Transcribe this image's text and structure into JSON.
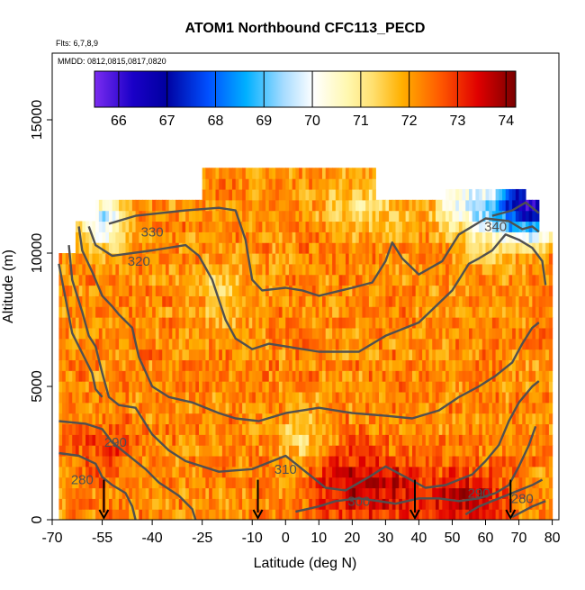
{
  "chart_data": {
    "type": "heatmap",
    "title": "ATOM1 Northbound CFC113_PECD",
    "subtitle_flights": "Flts: 6,7,8,9",
    "subtitle_dates": "MMDD: 0812,0815,0817,0820",
    "xlabel": "Latitude (deg N)",
    "ylabel": "Altitude (m)",
    "xlim": [
      -70,
      82
    ],
    "ylim": [
      0,
      17500
    ],
    "x_ticks": [
      -70,
      -55,
      -40,
      -25,
      -10,
      0,
      10,
      20,
      30,
      40,
      50,
      60,
      70,
      80
    ],
    "x_tick_labels": [
      "-70",
      "-55",
      "-40",
      "-25",
      "-10",
      "0",
      "10",
      "20",
      "30",
      "40",
      "50",
      "60",
      "70",
      "80"
    ],
    "y_ticks": [
      0,
      5000,
      10000,
      15000
    ],
    "y_tick_labels": [
      "0",
      "5000",
      "10000",
      "15000"
    ],
    "colorbar": {
      "min": 65.5,
      "max": 74.2,
      "ticks": [
        66,
        67,
        68,
        69,
        70,
        71,
        72,
        73,
        74
      ],
      "tick_labels": [
        "66",
        "67",
        "68",
        "69",
        "70",
        "71",
        "72",
        "73",
        "74"
      ]
    },
    "field_extent": {
      "x_min": -68,
      "x_max": 80,
      "y_min": 0,
      "y_max": 13000
    },
    "field_base_value": 72.2,
    "field_anomalies": [
      {
        "x": 74,
        "y": 12000,
        "value": 67.5,
        "sx": 6,
        "sy": 900
      },
      {
        "x": 64,
        "y": 11500,
        "value": 69.8,
        "sx": 9,
        "sy": 900
      },
      {
        "x": 52,
        "y": 12000,
        "value": 71.0,
        "sx": 6,
        "sy": 700
      },
      {
        "x": -55,
        "y": 11200,
        "value": 69.5,
        "sx": 4,
        "sy": 700
      },
      {
        "x": 25,
        "y": 11800,
        "value": 71.3,
        "sx": 9,
        "sy": 800
      },
      {
        "x": 5,
        "y": 3000,
        "value": 71.2,
        "sx": 5,
        "sy": 900
      },
      {
        "x": -20,
        "y": 8600,
        "value": 71.5,
        "sx": 6,
        "sy": 900
      },
      {
        "x": 30,
        "y": 1000,
        "value": 73.3,
        "sx": 12,
        "sy": 1000
      },
      {
        "x": 55,
        "y": 700,
        "value": 73.6,
        "sx": 8,
        "sy": 800
      },
      {
        "x": -55,
        "y": 2700,
        "value": 72.8,
        "sx": 8,
        "sy": 800
      },
      {
        "x": 15,
        "y": 1600,
        "value": 72.9,
        "sx": 10,
        "sy": 900
      }
    ],
    "contours": [
      {
        "label": "330",
        "label_x": -40,
        "label_y": 10800,
        "points": [
          [
            -53,
            11100
          ],
          [
            -45,
            11400
          ],
          [
            -30,
            11600
          ],
          [
            -20,
            11700
          ],
          [
            -15,
            11600
          ],
          [
            -12,
            10500
          ],
          [
            -10,
            9000
          ],
          [
            -7,
            8600
          ],
          [
            0,
            8700
          ],
          [
            5,
            8600
          ],
          [
            10,
            8400
          ],
          [
            20,
            8700
          ],
          [
            26,
            8900
          ],
          [
            30,
            9700
          ],
          [
            32,
            10400
          ],
          [
            35,
            9800
          ],
          [
            40,
            9200
          ],
          [
            47,
            9700
          ],
          [
            52,
            10700
          ],
          [
            60,
            11300
          ],
          [
            67,
            11200
          ],
          [
            71,
            10900
          ],
          [
            74,
            11000
          ],
          [
            76,
            10800
          ]
        ]
      },
      {
        "label": "340",
        "label_x": 63,
        "label_y": 11000,
        "points": [
          [
            62,
            11400
          ],
          [
            68,
            11600
          ],
          [
            72,
            11900
          ],
          [
            74,
            11700
          ],
          [
            76,
            11500
          ]
        ]
      },
      {
        "label": "320",
        "label_x": -44,
        "label_y": 9700,
        "points": [
          [
            -59,
            11000
          ],
          [
            -57,
            10300
          ],
          [
            -52,
            9900
          ],
          [
            -40,
            10100
          ],
          [
            -30,
            10300
          ],
          [
            -26,
            9900
          ],
          [
            -22,
            9000
          ],
          [
            -18,
            7500
          ],
          [
            -15,
            6800
          ],
          [
            -10,
            6400
          ],
          [
            -5,
            6600
          ],
          [
            0,
            6500
          ],
          [
            10,
            6300
          ],
          [
            22,
            6300
          ],
          [
            30,
            6900
          ],
          [
            40,
            7400
          ],
          [
            50,
            8600
          ],
          [
            55,
            9600
          ],
          [
            58,
            9800
          ],
          [
            62,
            10100
          ],
          [
            66,
            10700
          ],
          [
            70,
            10500
          ],
          [
            74,
            10200
          ],
          [
            77,
            9700
          ],
          [
            78,
            8800
          ]
        ]
      },
      {
        "label": "",
        "label_x": 0,
        "label_y": 0,
        "points": [
          [
            -62,
            11000
          ],
          [
            -61,
            10100
          ],
          [
            -58,
            9300
          ],
          [
            -55,
            8400
          ],
          [
            -52,
            8000
          ],
          [
            -50,
            7700
          ],
          [
            -46,
            7200
          ],
          [
            -44,
            6100
          ],
          [
            -40,
            5000
          ],
          [
            -35,
            4600
          ],
          [
            -28,
            4400
          ],
          [
            -20,
            4000
          ],
          [
            -15,
            3800
          ],
          [
            -8,
            3700
          ],
          [
            0,
            4000
          ],
          [
            10,
            4200
          ],
          [
            20,
            4000
          ],
          [
            30,
            3900
          ],
          [
            38,
            3800
          ],
          [
            46,
            4100
          ],
          [
            52,
            4600
          ],
          [
            58,
            5000
          ],
          [
            63,
            5400
          ],
          [
            68,
            5900
          ],
          [
            71,
            6600
          ],
          [
            74,
            7200
          ],
          [
            76,
            7400
          ]
        ]
      },
      {
        "label": "",
        "label_x": 0,
        "label_y": 0,
        "points": [
          [
            -65,
            10300
          ],
          [
            -64,
            9000
          ],
          [
            -61,
            7800
          ],
          [
            -59,
            6900
          ],
          [
            -57,
            6500
          ],
          [
            -55,
            5500
          ],
          [
            -53,
            4600
          ],
          [
            -50,
            4300
          ],
          [
            -45,
            4200
          ],
          [
            -43,
            3800
          ],
          [
            -40,
            3200
          ],
          [
            -35,
            2600
          ],
          [
            -30,
            2200
          ],
          [
            -20,
            1800
          ],
          [
            -10,
            1900
          ],
          [
            0,
            2400
          ],
          [
            3,
            2100
          ],
          [
            8,
            1600
          ],
          [
            12,
            1200
          ],
          [
            18,
            1100
          ],
          [
            25,
            1600
          ],
          [
            30,
            2000
          ],
          [
            36,
            1600
          ],
          [
            42,
            1200
          ],
          [
            48,
            1300
          ],
          [
            52,
            1500
          ],
          [
            56,
            1700
          ],
          [
            60,
            2200
          ],
          [
            64,
            2800
          ],
          [
            67,
            3700
          ],
          [
            70,
            4400
          ],
          [
            74,
            5000
          ],
          [
            76,
            5200
          ]
        ]
      },
      {
        "label": "310",
        "label_x": 0,
        "label_y": 1900,
        "points": [
          [
            -68,
            9600
          ],
          [
            -66,
            8300
          ],
          [
            -64,
            7000
          ],
          [
            -62,
            6500
          ],
          [
            -60,
            6000
          ],
          [
            -58,
            5500
          ],
          [
            -57,
            4900
          ],
          [
            -55,
            4600
          ]
        ]
      },
      {
        "label": "290",
        "label_x": -51,
        "label_y": 2900,
        "points": [
          [
            -68,
            3700
          ],
          [
            -60,
            3600
          ],
          [
            -55,
            3400
          ],
          [
            -52,
            2900
          ],
          [
            -48,
            2500
          ],
          [
            -42,
            1900
          ],
          [
            -38,
            1400
          ],
          [
            -32,
            900
          ],
          [
            -28,
            400
          ],
          [
            -27,
            0
          ]
        ]
      },
      {
        "label": "280",
        "label_x": -61,
        "label_y": 1500,
        "points": [
          [
            -68,
            2500
          ],
          [
            -62,
            2400
          ],
          [
            -57,
            2100
          ],
          [
            -55,
            1600
          ],
          [
            -52,
            1300
          ],
          [
            -48,
            1000
          ],
          [
            -46,
            500
          ],
          [
            -45,
            0
          ]
        ]
      },
      {
        "label": "300",
        "label_x": 22,
        "label_y": 700,
        "points": [
          [
            3,
            300
          ],
          [
            10,
            500
          ],
          [
            15,
            700
          ],
          [
            22,
            800
          ],
          [
            28,
            700
          ],
          [
            33,
            600
          ],
          [
            40,
            800
          ],
          [
            46,
            800
          ],
          [
            52,
            700
          ],
          [
            58,
            800
          ],
          [
            63,
            1000
          ],
          [
            67,
            1300
          ],
          [
            70,
            2000
          ],
          [
            73,
            2800
          ],
          [
            75,
            3500
          ]
        ]
      },
      {
        "label": "290",
        "label_x": 58,
        "label_y": 1000,
        "points": [
          [
            54,
            200
          ],
          [
            58,
            500
          ],
          [
            62,
            700
          ],
          [
            66,
            900
          ],
          [
            70,
            1100
          ],
          [
            74,
            1300
          ],
          [
            77,
            1500
          ]
        ]
      },
      {
        "label": "280",
        "label_x": 71,
        "label_y": 800,
        "points": [
          [
            68,
            100
          ],
          [
            71,
            300
          ],
          [
            74,
            500
          ],
          [
            78,
            700
          ]
        ]
      }
    ],
    "arrow_latitudes": [
      -54.5,
      -8.3,
      38.8,
      67.5
    ]
  }
}
